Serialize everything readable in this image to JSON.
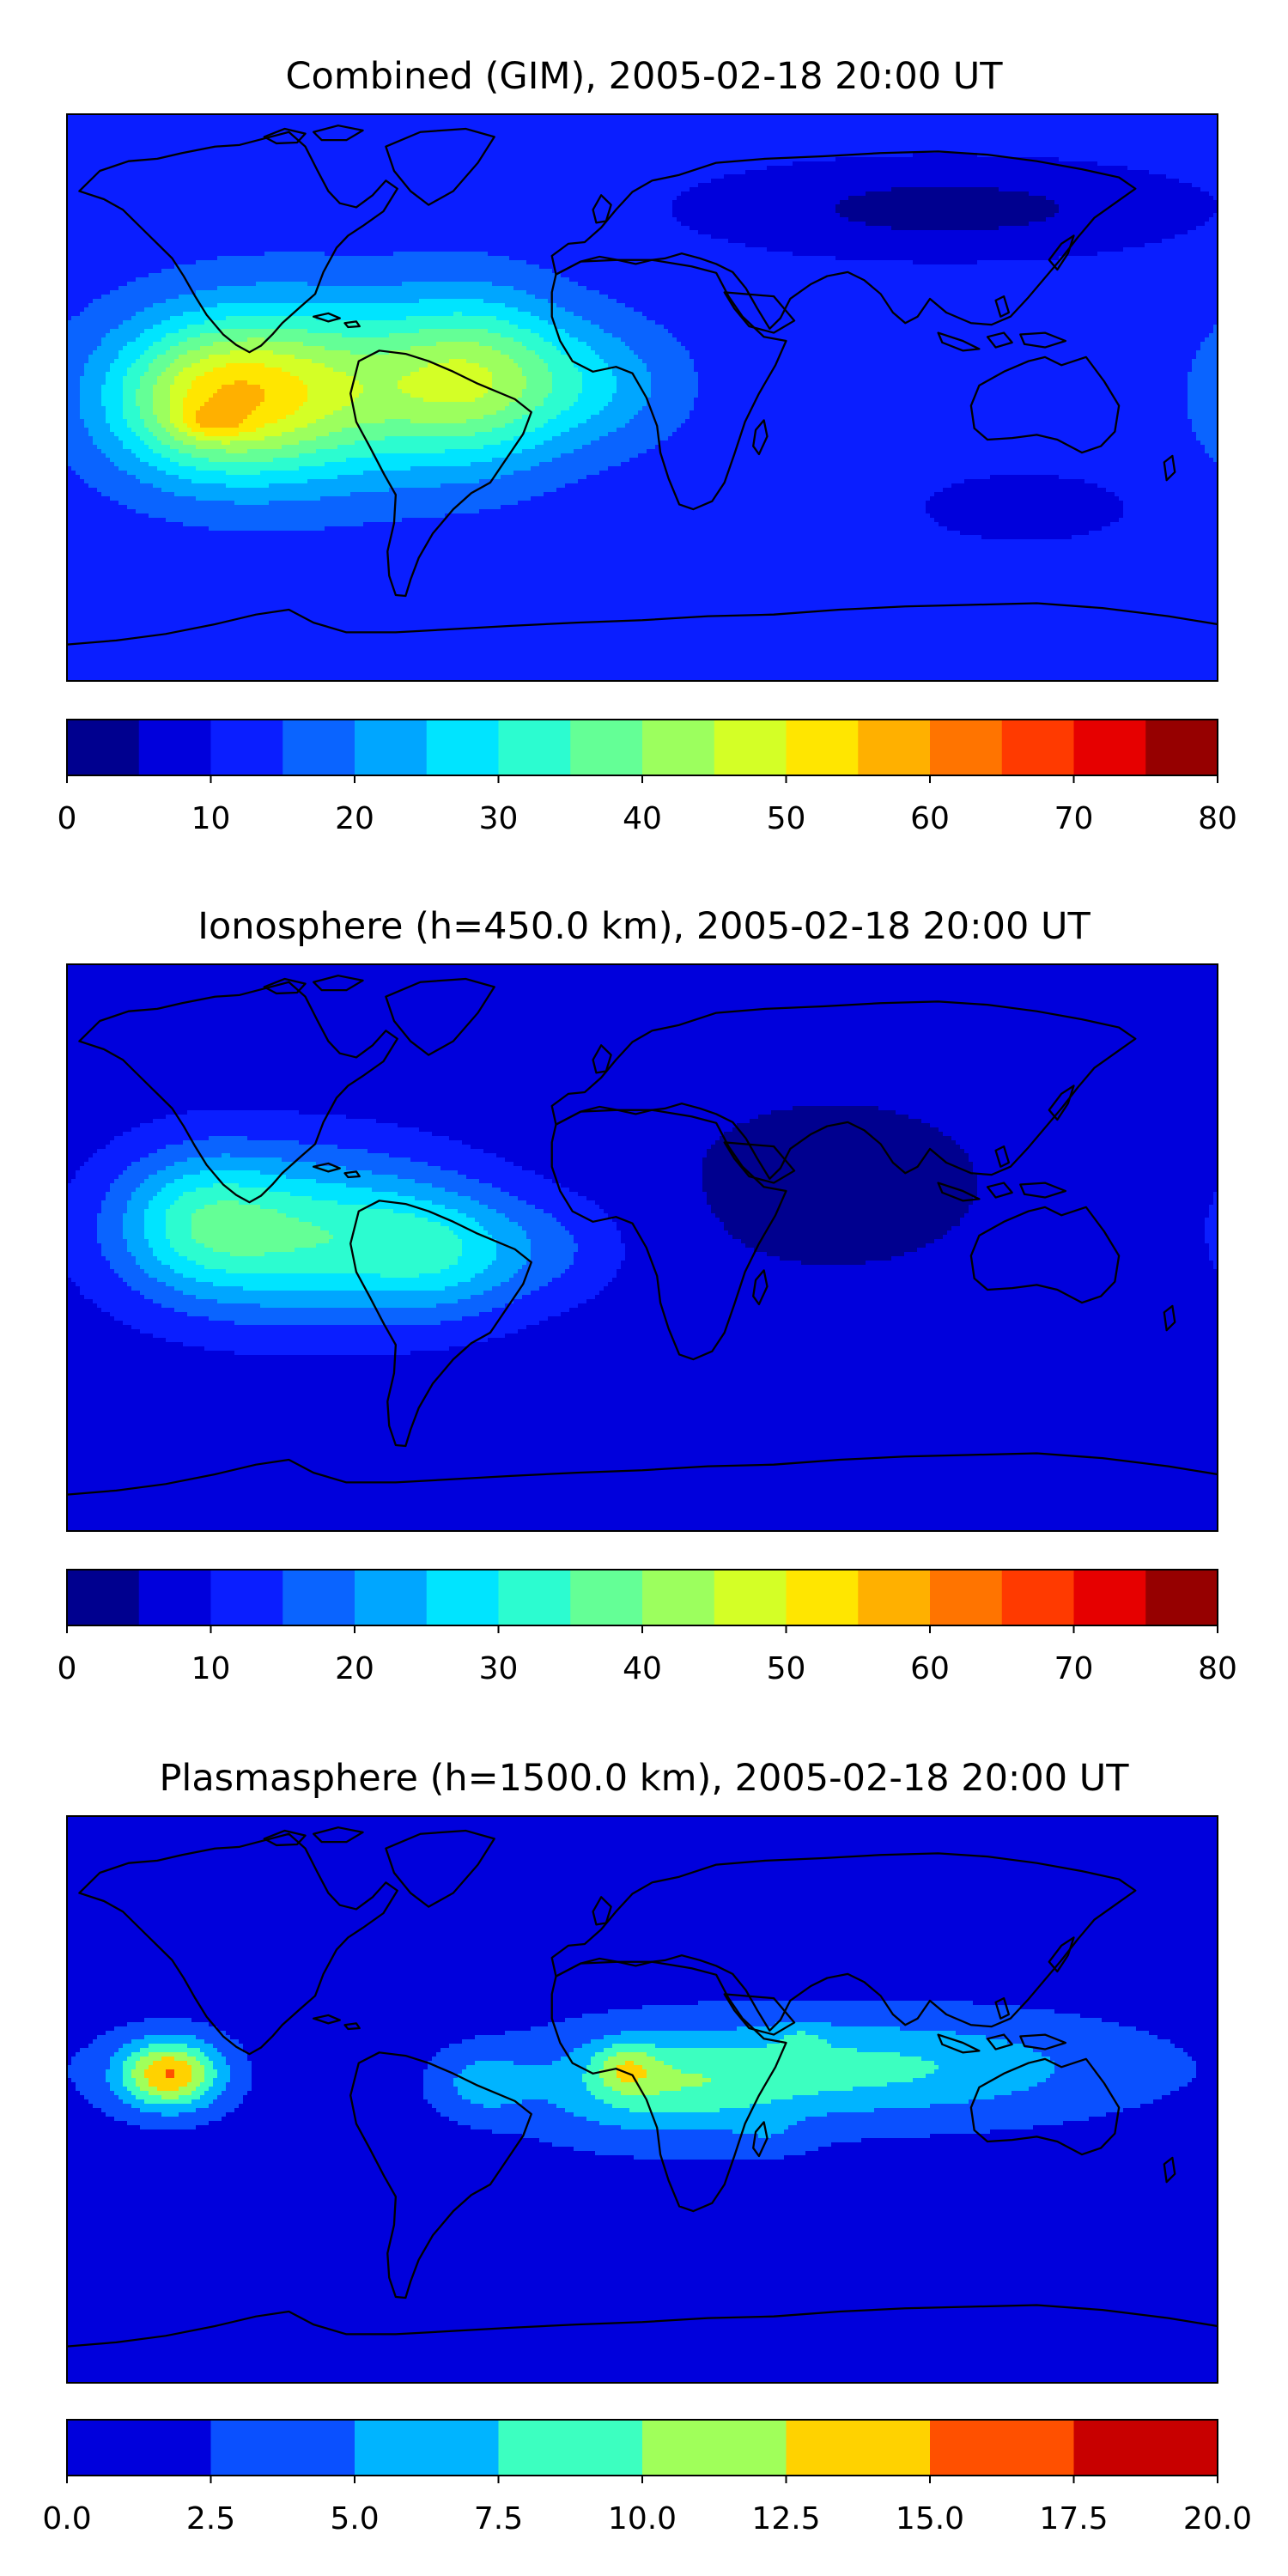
{
  "chart_data": [
    {
      "type": "heatmap",
      "title": "Combined (GIM), 2005-02-18 20:00 UT",
      "colorbar": {
        "levels": [
          0,
          5,
          10,
          15,
          20,
          25,
          30,
          35,
          40,
          45,
          50,
          55,
          60,
          65,
          70,
          75,
          80
        ],
        "tick_labels": [
          "0",
          "10",
          "20",
          "30",
          "40",
          "50",
          "60",
          "70",
          "80"
        ],
        "colors": [
          "#00008f",
          "#0000dc",
          "#0a1eff",
          "#0a64ff",
          "#00a6ff",
          "#00e4ff",
          "#2cfcd0",
          "#64ff96",
          "#9cff5e",
          "#d4ff26",
          "#ffe600",
          "#ffb000",
          "#ff7400",
          "#ff3a00",
          "#e60000",
          "#960000"
        ]
      },
      "background_level": 12,
      "features": [
        {
          "lon": -112,
          "lat": 2,
          "sx": 48,
          "sy": 28,
          "amp": 34
        },
        {
          "lon": -52,
          "lat": 6,
          "sx": 30,
          "sy": 26,
          "amp": 26
        },
        {
          "lon": -138,
          "lat": -2,
          "sx": 28,
          "sy": 22,
          "amp": 16
        },
        {
          "lon": -14,
          "lat": 4,
          "sx": 28,
          "sy": 20,
          "amp": 10
        },
        {
          "lon": -135,
          "lat": -8,
          "sx": 10,
          "sy": 5,
          "amp": 8
        },
        {
          "lon": 95,
          "lat": 60,
          "sx": 70,
          "sy": 14,
          "amp": -9
        },
        {
          "lon": 120,
          "lat": -35,
          "sx": 30,
          "sy": 10,
          "amp": -6
        }
      ]
    },
    {
      "type": "heatmap",
      "title": "Ionosphere  (h=450.0 km), 2005-02-18 20:00 UT",
      "colorbar": {
        "levels": [
          0,
          5,
          10,
          15,
          20,
          25,
          30,
          35,
          40,
          45,
          50,
          55,
          60,
          65,
          70,
          75,
          80
        ],
        "tick_labels": [
          "0",
          "10",
          "20",
          "30",
          "40",
          "50",
          "60",
          "70",
          "80"
        ],
        "colors": [
          "#00008f",
          "#0000dc",
          "#0a1eff",
          "#0a64ff",
          "#00a6ff",
          "#00e4ff",
          "#2cfcd0",
          "#64ff96",
          "#9cff5e",
          "#d4ff26",
          "#ffe600",
          "#ffb000",
          "#ff7400",
          "#ff3a00",
          "#e60000",
          "#960000"
        ]
      },
      "background_level": 7,
      "features": [
        {
          "lon": -108,
          "lat": 4,
          "sx": 50,
          "sy": 26,
          "amp": 26
        },
        {
          "lon": -62,
          "lat": -2,
          "sx": 28,
          "sy": 20,
          "amp": 14
        },
        {
          "lon": -140,
          "lat": 10,
          "sx": 25,
          "sy": 22,
          "amp": 12
        },
        {
          "lon": -25,
          "lat": 0,
          "sx": 25,
          "sy": 18,
          "amp": 6
        },
        {
          "lon": 60,
          "lat": 20,
          "sx": 70,
          "sy": 40,
          "amp": -3
        }
      ]
    },
    {
      "type": "heatmap",
      "title": "Plasmasphere (h=1500.0 km), 2005-02-18 20:00 UT",
      "colorbar": {
        "levels": [
          0.0,
          2.5,
          5.0,
          7.5,
          10.0,
          12.5,
          15.0,
          17.5,
          20.0
        ],
        "tick_labels": [
          "0.0",
          "2.5",
          "5.0",
          "7.5",
          "10.0",
          "12.5",
          "15.0",
          "17.5",
          "20.0"
        ],
        "colors": [
          "#0000dc",
          "#0a50ff",
          "#00b4ff",
          "#3cffc0",
          "#a0ff5a",
          "#ffd200",
          "#ff5000",
          "#c80000"
        ]
      },
      "background_level": 1.5,
      "features": [
        {
          "lon": 70,
          "lat": 10,
          "sx": 75,
          "sy": 16,
          "amp": 6.5
        },
        {
          "lon": 5,
          "lat": 3,
          "sx": 40,
          "sy": 16,
          "amp": 5.5
        },
        {
          "lon": -148,
          "lat": 8,
          "sx": 16,
          "sy": 11,
          "amp": 13.5
        },
        {
          "lon": -50,
          "lat": 5,
          "sx": 14,
          "sy": 10,
          "amp": 4
        },
        {
          "lon": -5,
          "lat": 10,
          "sx": 10,
          "sy": 8,
          "amp": 5
        },
        {
          "lon": 50,
          "lat": 20,
          "sx": 8,
          "sy": 5,
          "amp": 2
        },
        {
          "lon": 40,
          "lat": -12,
          "sx": 12,
          "sy": 6,
          "amp": 1.5
        }
      ]
    }
  ]
}
